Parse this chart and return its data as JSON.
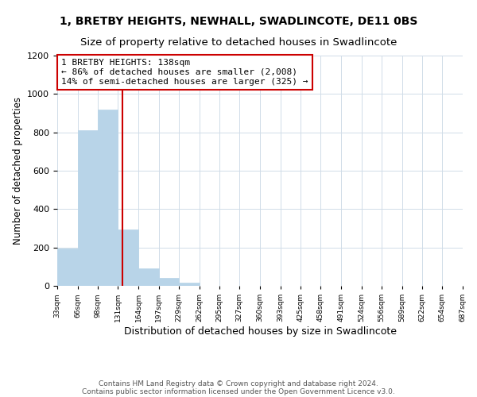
{
  "title": "1, BRETBY HEIGHTS, NEWHALL, SWADLINCOTE, DE11 0BS",
  "subtitle": "Size of property relative to detached houses in Swadlincote",
  "xlabel": "Distribution of detached houses by size in Swadlincote",
  "ylabel": "Number of detached properties",
  "footer_line1": "Contains HM Land Registry data © Crown copyright and database right 2024.",
  "footer_line2": "Contains public sector information licensed under the Open Government Licence v3.0.",
  "bar_edges": [
    33,
    66,
    98,
    131,
    164,
    197,
    229,
    262,
    295,
    327,
    360,
    393,
    425,
    458,
    491,
    524,
    556,
    589,
    622,
    654,
    687
  ],
  "bar_heights": [
    195,
    810,
    920,
    295,
    90,
    40,
    18,
    0,
    0,
    0,
    0,
    0,
    0,
    0,
    0,
    0,
    0,
    0,
    0,
    0
  ],
  "bar_color": "#b8d4e8",
  "bar_edgecolor": "#b8d4e8",
  "vline_x": 138,
  "vline_color": "#cc0000",
  "annotation_line1": "1 BRETBY HEIGHTS: 138sqm",
  "annotation_line2": "← 86% of detached houses are smaller (2,008)",
  "annotation_line3": "14% of semi-detached houses are larger (325) →",
  "annotation_box_edgecolor": "#cc0000",
  "annotation_fontsize": 8,
  "ylim": [
    0,
    1200
  ],
  "yticks": [
    0,
    200,
    400,
    600,
    800,
    1000,
    1200
  ],
  "tick_labels": [
    "33sqm",
    "66sqm",
    "98sqm",
    "131sqm",
    "164sqm",
    "197sqm",
    "229sqm",
    "262sqm",
    "295sqm",
    "327sqm",
    "360sqm",
    "393sqm",
    "425sqm",
    "458sqm",
    "491sqm",
    "524sqm",
    "556sqm",
    "589sqm",
    "622sqm",
    "654sqm",
    "687sqm"
  ],
  "title_fontsize": 10,
  "subtitle_fontsize": 9.5,
  "xlabel_fontsize": 9,
  "ylabel_fontsize": 8.5,
  "footer_fontsize": 6.5,
  "background_color": "#ffffff",
  "grid_color": "#d0dce8"
}
